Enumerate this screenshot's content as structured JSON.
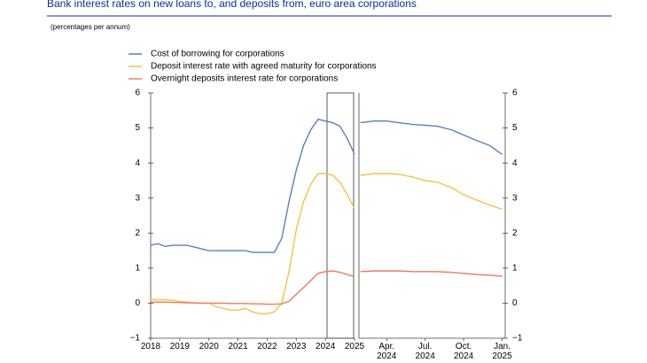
{
  "chart_data": [
    {
      "type": "line",
      "title": "Bank interest rates on new loans to, and deposits from, euro area corporations",
      "subtitle": "(percentages per annum)",
      "x": [
        2018,
        2018.25,
        2018.5,
        2018.75,
        2019,
        2019.25,
        2019.5,
        2019.75,
        2020,
        2020.25,
        2020.5,
        2020.75,
        2021,
        2021.25,
        2021.5,
        2021.75,
        2022,
        2022.25,
        2022.5,
        2022.75,
        2023,
        2023.25,
        2023.5,
        2023.75,
        2024,
        2024.25,
        2024.5,
        2024.75,
        2025
      ],
      "series": [
        {
          "name": "Cost of borrowing for corporations",
          "color": "#5b7fbf",
          "values": [
            1.65,
            1.7,
            1.62,
            1.65,
            1.65,
            1.65,
            1.6,
            1.55,
            1.5,
            1.5,
            1.5,
            1.5,
            1.5,
            1.5,
            1.45,
            1.45,
            1.45,
            1.45,
            1.85,
            2.9,
            3.8,
            4.5,
            4.95,
            5.25,
            5.2,
            5.15,
            5.05,
            4.7,
            4.25
          ]
        },
        {
          "name": "Deposit interest rate with agreed maturity for corporations",
          "color": "#f5c242",
          "values": [
            0.1,
            0.1,
            0.1,
            0.08,
            0.05,
            0.03,
            0.0,
            0.0,
            0.0,
            -0.1,
            -0.15,
            -0.2,
            -0.2,
            -0.15,
            -0.25,
            -0.3,
            -0.3,
            -0.25,
            0.0,
            0.9,
            2.1,
            2.9,
            3.4,
            3.7,
            3.7,
            3.65,
            3.45,
            3.1,
            2.7
          ]
        },
        {
          "name": "Overnight deposits interest rate for corporations",
          "color": "#f07a5a",
          "values": [
            0.03,
            0.03,
            0.03,
            0.02,
            0.02,
            0.01,
            0.01,
            0.0,
            0.0,
            0.0,
            0.0,
            -0.01,
            -0.01,
            -0.01,
            -0.02,
            -0.02,
            -0.03,
            -0.03,
            -0.02,
            0.05,
            0.25,
            0.45,
            0.65,
            0.85,
            0.9,
            0.92,
            0.88,
            0.82,
            0.75
          ]
        }
      ],
      "xlim": [
        2018,
        2025
      ],
      "xticks": [
        2018,
        2019,
        2020,
        2021,
        2022,
        2023,
        2024,
        2025
      ],
      "ylim": [
        -1,
        6
      ],
      "yticks": [
        {
          "value": -1,
          "label": "−1"
        },
        0,
        1,
        2,
        3,
        4,
        5,
        6
      ]
    },
    {
      "type": "line",
      "x": [
        2024.08,
        2024.17,
        2024.25,
        2024.33,
        2024.42,
        2024.5,
        2024.58,
        2024.67,
        2024.75,
        2024.83,
        2024.92,
        2025.0
      ],
      "series": [
        {
          "color": "#5b7fbf",
          "values": [
            5.15,
            5.2,
            5.2,
            5.15,
            5.1,
            5.08,
            5.05,
            4.95,
            4.8,
            4.65,
            4.5,
            4.25
          ]
        },
        {
          "color": "#f5c242",
          "values": [
            3.65,
            3.7,
            3.7,
            3.68,
            3.6,
            3.5,
            3.45,
            3.3,
            3.1,
            2.95,
            2.8,
            2.68
          ]
        },
        {
          "color": "#f07a5a",
          "values": [
            0.9,
            0.92,
            0.92,
            0.92,
            0.9,
            0.9,
            0.9,
            0.88,
            0.85,
            0.82,
            0.8,
            0.77
          ]
        }
      ],
      "xlim": [
        2024.07,
        2025.02
      ],
      "xticks": [
        {
          "value": 2024.25,
          "label": "Apr. 2024"
        },
        {
          "value": 2024.5,
          "label": "Jul. 2024"
        },
        {
          "value": 2024.75,
          "label": "Oct. 2024"
        },
        {
          "value": 2025.0,
          "label": "Jan. 2025"
        }
      ],
      "ylim": [
        -1,
        6
      ],
      "yticks": [
        {
          "value": -1,
          "label": "−1"
        },
        0,
        1,
        2,
        3,
        4,
        5,
        6
      ]
    }
  ]
}
